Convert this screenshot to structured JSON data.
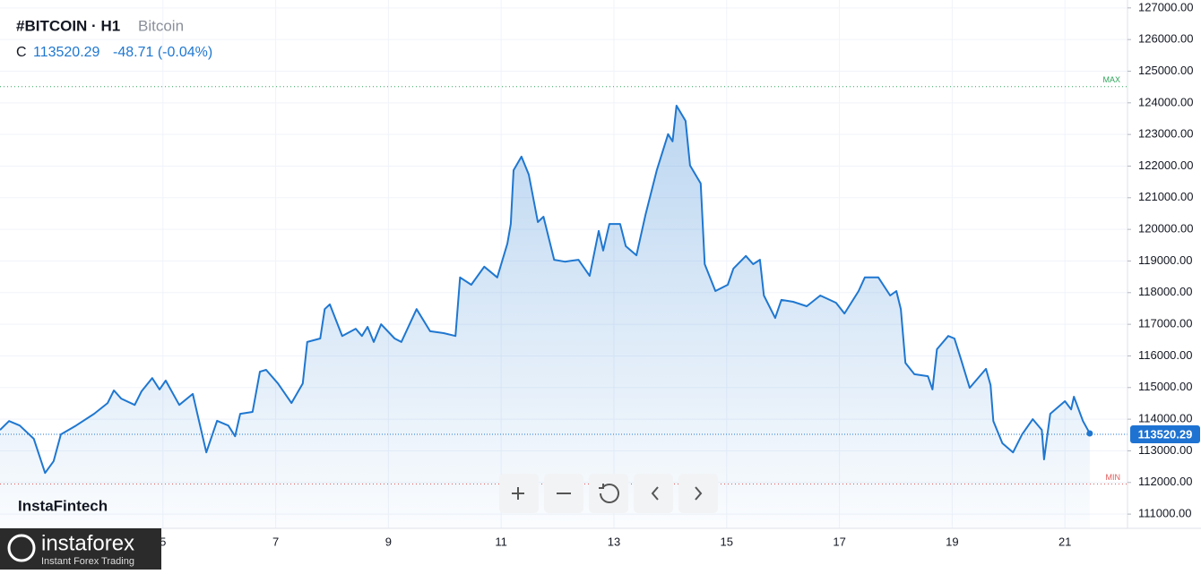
{
  "header": {
    "symbol": "#BITCOIN · H1",
    "name": "Bitcoin",
    "close_prefix": "C",
    "close": "113520.29",
    "change": "-48.71 (-0.04%)"
  },
  "watermark": "InstaFintech",
  "logo": {
    "brand": "instaforex",
    "tagline": "Instant Forex Trading"
  },
  "chart_data": {
    "type": "line",
    "color": "#1f77d0",
    "area": true,
    "grid": true,
    "x": [
      2.11,
      2.27,
      2.46,
      2.71,
      2.91,
      3.06,
      3.19,
      3.46,
      3.78,
      4.02,
      4.13,
      4.26,
      4.5,
      4.62,
      4.81,
      4.94,
      5.05,
      5.29,
      5.53,
      5.61,
      5.77,
      5.96,
      6.16,
      6.28,
      6.37,
      6.59,
      6.72,
      6.83,
      7.04,
      7.28,
      7.48,
      7.56,
      7.79,
      7.87,
      7.96,
      8.18,
      8.42,
      8.53,
      8.63,
      8.74,
      8.87,
      9.11,
      9.23,
      9.5,
      9.74,
      9.98,
      10.19,
      10.27,
      10.47,
      10.7,
      10.93,
      11.11,
      11.17,
      11.22,
      11.36,
      11.49,
      11.65,
      11.75,
      11.94,
      12.13,
      12.37,
      12.57,
      12.73,
      12.81,
      12.92,
      13.11,
      13.21,
      13.4,
      13.56,
      13.76,
      13.96,
      14.04,
      14.11,
      14.27,
      14.35,
      14.54,
      14.61,
      14.8,
      15.02,
      15.12,
      15.34,
      15.47,
      15.59,
      15.66,
      15.86,
      15.97,
      16.18,
      16.42,
      16.66,
      16.94,
      17.09,
      17.34,
      17.45,
      17.69,
      17.9,
      18.01,
      18.09,
      18.17,
      18.33,
      18.57,
      18.65,
      18.73,
      18.93,
      19.04,
      19.15,
      19.31,
      19.6,
      19.68,
      19.73,
      19.89,
      20.08,
      20.24,
      20.43,
      20.59,
      20.63,
      20.74,
      21.0,
      21.11,
      21.16,
      21.32,
      21.44
    ],
    "values": [
      113660,
      113940,
      113800,
      113380,
      112300,
      112670,
      113520,
      113800,
      114170,
      114510,
      114910,
      114650,
      114450,
      114880,
      115300,
      114940,
      115220,
      114450,
      114800,
      114170,
      112950,
      113950,
      113800,
      113460,
      114170,
      114230,
      115500,
      115560,
      115130,
      114510,
      115130,
      116440,
      116550,
      117480,
      117630,
      116630,
      116860,
      116630,
      116920,
      116440,
      117000,
      116550,
      116440,
      117480,
      116780,
      116720,
      116630,
      118480,
      118250,
      118820,
      118480,
      119550,
      120170,
      121870,
      122300,
      121730,
      120230,
      120400,
      119040,
      118980,
      119040,
      118530,
      119950,
      119330,
      120170,
      120170,
      119470,
      119180,
      120460,
      121870,
      123010,
      122780,
      123910,
      123430,
      122020,
      121450,
      118900,
      118050,
      118250,
      118760,
      119160,
      118900,
      119040,
      117910,
      117200,
      117770,
      117710,
      117570,
      117910,
      117680,
      117340,
      118050,
      118480,
      118480,
      117910,
      118050,
      117480,
      115780,
      115420,
      115360,
      114940,
      116210,
      116630,
      116550,
      115930,
      114990,
      115590,
      115080,
      113940,
      113240,
      112950,
      113520,
      114000,
      113660,
      112730,
      114170,
      114570,
      114310,
      114710,
      113940,
      113550
    ],
    "xlim": [
      2.11,
      22.11
    ],
    "xticks": [
      5,
      7,
      9,
      11,
      13,
      15,
      17,
      19,
      21
    ],
    "ylim": [
      110550,
      127250
    ],
    "yticks": [
      {
        "value": 111000,
        "label": "111000.00"
      },
      {
        "value": 112000,
        "label": "112000.00"
      },
      {
        "value": 113000,
        "label": "113000.00"
      },
      {
        "value": 114000,
        "label": "114000.00"
      },
      {
        "value": 115000,
        "label": "115000.00"
      },
      {
        "value": 116000,
        "label": "116000.00"
      },
      {
        "value": 117000,
        "label": "117000.00"
      },
      {
        "value": 118000,
        "label": "118000.00"
      },
      {
        "value": 119000,
        "label": "119000.00"
      },
      {
        "value": 120000,
        "label": "120000.00"
      },
      {
        "value": 121000,
        "label": "121000.00"
      },
      {
        "value": 122000,
        "label": "122000.00"
      },
      {
        "value": 123000,
        "label": "123000.00"
      },
      {
        "value": 124000,
        "label": "124000.00"
      },
      {
        "value": 125000,
        "label": "125000.00"
      },
      {
        "value": 126000,
        "label": "126000.00"
      },
      {
        "value": 127000,
        "label": "127000.00"
      }
    ],
    "last_value": 113520.29,
    "reference_lines": [
      {
        "label": "MAX",
        "value": 124510,
        "color": "#2ea65a"
      },
      {
        "label": "MIN",
        "value": 111950,
        "color": "#e05a5a"
      }
    ]
  }
}
